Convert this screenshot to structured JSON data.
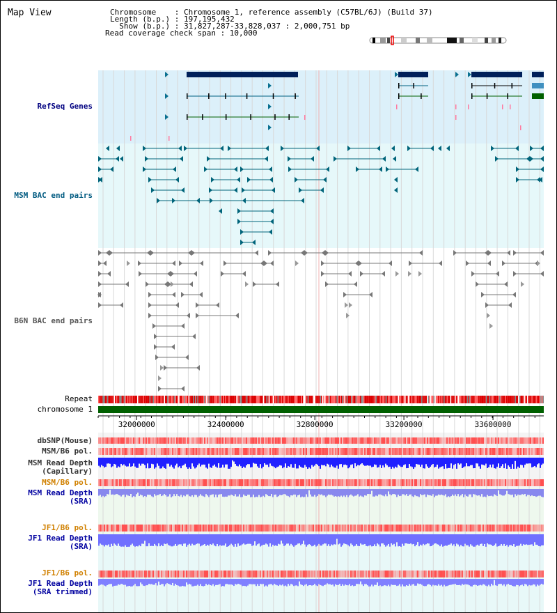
{
  "title": "Map View",
  "info": {
    "line1": "Chromosome    : Chromosome 1, reference assembly (C57BL/6J) (Build 37)",
    "line2": "Length (b.p.) : 197,195,432",
    "line3": "  Show (b.p.) : 31,827,287-33,828,037 : 2,000,751 bp",
    "line4": "Read coverage check span : 10,000"
  },
  "tracks": {
    "refseq": "RefSeq Genes",
    "msm_bac": "MSM BAC end pairs",
    "b6n_bac": "B6N BAC end pairs",
    "repeat": "Repeat",
    "chromosome": "chromosome 1",
    "dbsnp": "dbSNP(Mouse)",
    "msm_b6_pol": "MSM/B6 pol.",
    "msm_depth_cap_1": "MSM Read Depth",
    "msm_depth_cap_2": "(Capillary)",
    "msm_b6_pol_sra": "MSM/B6 pol.",
    "msm_depth_sra_1": "MSM Read Depth",
    "msm_depth_sra_2": "(SRA)",
    "jf1_b6_pol": "JF1/B6 pol.",
    "jf1_depth_1": "JF1 Read Depth",
    "jf1_depth_2": "(SRA)",
    "jf1_b6_pol_2": "JF1/B6 pol.",
    "jf1_trim_1": "JF1 Read Depth",
    "jf1_trim_2": "(SRA trimmed)"
  },
  "axis": {
    "ticks": [
      "32000000",
      "32400000",
      "32800000",
      "33200000",
      "33600000"
    ],
    "tick_values": [
      32000000,
      32400000,
      32800000,
      33200000,
      33600000
    ],
    "range": [
      31827287,
      33828037
    ]
  },
  "colors": {
    "refseq_band": "#dcf0fa",
    "msm_band": "#e6f8fa",
    "repeat_red": "#dd0000",
    "chromosome": "#006000",
    "gene_navy": "#00205a",
    "msm_feature": "#00647a",
    "b6n_feature": "#777777",
    "pol_red": "#ff5050",
    "depth_blue": "#2020ff",
    "sra_blue": "#8888ee"
  }
}
